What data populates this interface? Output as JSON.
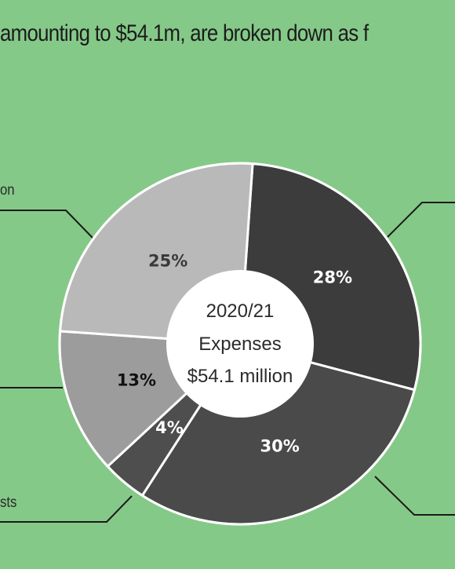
{
  "headline": "amounting to $54.1m, are broken down as f",
  "side_labels": {
    "upper_left": "on",
    "lower_left": "sts"
  },
  "chart_data": {
    "type": "pie",
    "title": "",
    "center_lines": [
      "2020/21",
      "Expenses",
      "$54.1 million"
    ],
    "slices": [
      {
        "value": 28,
        "label": "28%",
        "color": "#3c3c3c",
        "label_color": "#ffffff"
      },
      {
        "value": 30,
        "label": "30%",
        "color": "#4a4a4a",
        "label_color": "#ffffff"
      },
      {
        "value": 4,
        "label": "4%",
        "color": "#4e4e4e",
        "label_color": "#ffffff"
      },
      {
        "value": 13,
        "label": "13%",
        "color": "#9c9c9c",
        "label_color": "#111111"
      },
      {
        "value": 25,
        "label": "25%",
        "color": "#b9b9b9",
        "label_color": "#3a3a3a"
      }
    ],
    "colors": {
      "background": "#85c988",
      "stroke": "#ffffff",
      "leader": "#1a1a1a"
    }
  }
}
